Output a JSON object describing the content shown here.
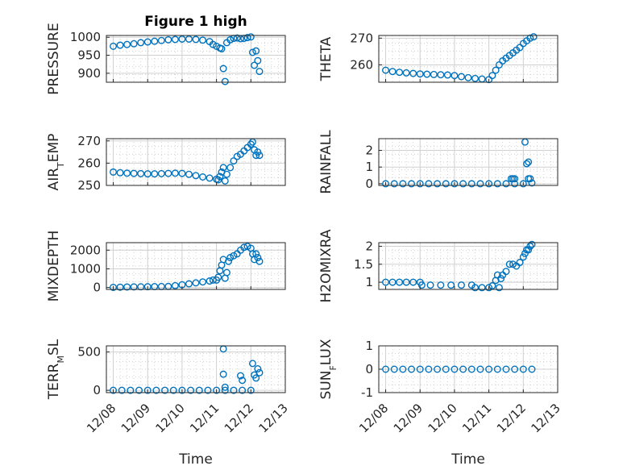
{
  "chart_data": [
    {
      "type": "scatter",
      "title": "Figure 1 high",
      "ylabel": "PRESSURE",
      "ylim": [
        875,
        1005
      ],
      "yticks": [
        {
          "v": 900,
          "t": "900"
        },
        {
          "v": 950,
          "t": "950"
        },
        {
          "v": 1000,
          "t": "1000"
        }
      ],
      "xlim": [
        -0.2,
        5
      ],
      "xticks": [
        {
          "v": 0,
          "t": "12/08"
        },
        {
          "v": 1,
          "t": "12/09"
        },
        {
          "v": 2,
          "t": "12/10"
        },
        {
          "v": 3,
          "t": "12/11"
        },
        {
          "v": 4,
          "t": "12/12"
        },
        {
          "v": 5,
          "t": "12/13"
        }
      ],
      "show_xticklabels": false,
      "xlabel": "",
      "points": [
        [
          0,
          975
        ],
        [
          0.2,
          978
        ],
        [
          0.4,
          980
        ],
        [
          0.6,
          982
        ],
        [
          0.8,
          985
        ],
        [
          1,
          987
        ],
        [
          1.2,
          989
        ],
        [
          1.4,
          991
        ],
        [
          1.6,
          993
        ],
        [
          1.8,
          994
        ],
        [
          2,
          995
        ],
        [
          2.2,
          995
        ],
        [
          2.4,
          994
        ],
        [
          2.6,
          992
        ],
        [
          2.8,
          988
        ],
        [
          2.9,
          980
        ],
        [
          3,
          975
        ],
        [
          3.1,
          970
        ],
        [
          3.15,
          968
        ],
        [
          3.2,
          913
        ],
        [
          3.25,
          877
        ],
        [
          3.3,
          985
        ],
        [
          3.4,
          993
        ],
        [
          3.5,
          997
        ],
        [
          3.6,
          998
        ],
        [
          3.7,
          996
        ],
        [
          3.8,
          997
        ],
        [
          3.9,
          999
        ],
        [
          4,
          1001
        ],
        [
          4.05,
          958
        ],
        [
          4.1,
          922
        ],
        [
          4.15,
          962
        ],
        [
          4.2,
          935
        ],
        [
          4.25,
          905
        ]
      ]
    },
    {
      "type": "scatter",
      "title": "",
      "ylabel": "THETA",
      "ylim": [
        253.5,
        271
      ],
      "yticks": [
        {
          "v": 260,
          "t": "260"
        },
        {
          "v": 270,
          "t": "270"
        }
      ],
      "xlim": [
        -0.2,
        5
      ],
      "xticks": [
        {
          "v": 0,
          "t": "12/08"
        },
        {
          "v": 1,
          "t": "12/09"
        },
        {
          "v": 2,
          "t": "12/10"
        },
        {
          "v": 3,
          "t": "12/11"
        },
        {
          "v": 4,
          "t": "12/12"
        },
        {
          "v": 5,
          "t": "12/13"
        }
      ],
      "show_xticklabels": false,
      "xlabel": "",
      "points": [
        [
          0,
          258
        ],
        [
          0.2,
          257.5
        ],
        [
          0.4,
          257.2
        ],
        [
          0.6,
          257
        ],
        [
          0.8,
          256.8
        ],
        [
          1,
          256.6
        ],
        [
          1.2,
          256.5
        ],
        [
          1.4,
          256.4
        ],
        [
          1.6,
          256.3
        ],
        [
          1.8,
          256.2
        ],
        [
          2,
          256
        ],
        [
          2.2,
          255.6
        ],
        [
          2.4,
          255.2
        ],
        [
          2.6,
          254.9
        ],
        [
          2.8,
          254.7
        ],
        [
          3,
          254.5
        ],
        [
          3.1,
          256
        ],
        [
          3.2,
          258
        ],
        [
          3.3,
          260
        ],
        [
          3.4,
          261.5
        ],
        [
          3.5,
          262.5
        ],
        [
          3.6,
          263.5
        ],
        [
          3.7,
          264.5
        ],
        [
          3.8,
          265.5
        ],
        [
          3.9,
          266.5
        ],
        [
          4,
          268
        ],
        [
          4.1,
          269
        ],
        [
          4.2,
          270
        ],
        [
          4.3,
          270.5
        ]
      ]
    },
    {
      "type": "scatter",
      "title": "",
      "ylabel": "AIR_TEMP",
      "ylim": [
        250,
        271
      ],
      "yticks": [
        {
          "v": 250,
          "t": "250"
        },
        {
          "v": 260,
          "t": "260"
        },
        {
          "v": 270,
          "t": "270"
        }
      ],
      "xlim": [
        -0.2,
        5
      ],
      "xticks": [
        {
          "v": 0,
          "t": "12/08"
        },
        {
          "v": 1,
          "t": "12/09"
        },
        {
          "v": 2,
          "t": "12/10"
        },
        {
          "v": 3,
          "t": "12/11"
        },
        {
          "v": 4,
          "t": "12/12"
        },
        {
          "v": 5,
          "t": "12/13"
        }
      ],
      "show_xticklabels": false,
      "xlabel": "",
      "points": [
        [
          0,
          256
        ],
        [
          0.2,
          255.7
        ],
        [
          0.4,
          255.5
        ],
        [
          0.6,
          255.4
        ],
        [
          0.8,
          255.3
        ],
        [
          1,
          255.2
        ],
        [
          1.2,
          255.2
        ],
        [
          1.4,
          255.3
        ],
        [
          1.6,
          255.4
        ],
        [
          1.8,
          255.5
        ],
        [
          2,
          255.4
        ],
        [
          2.2,
          255
        ],
        [
          2.4,
          254.4
        ],
        [
          2.6,
          253.8
        ],
        [
          2.8,
          253.3
        ],
        [
          3,
          252.8
        ],
        [
          3.05,
          252.5
        ],
        [
          3.1,
          254
        ],
        [
          3.15,
          256
        ],
        [
          3.2,
          258
        ],
        [
          3.25,
          252
        ],
        [
          3.3,
          255
        ],
        [
          3.4,
          258
        ],
        [
          3.5,
          261
        ],
        [
          3.6,
          263
        ],
        [
          3.7,
          264
        ],
        [
          3.8,
          265.5
        ],
        [
          3.9,
          267
        ],
        [
          4,
          268.5
        ],
        [
          4.05,
          269.5
        ],
        [
          4.1,
          266
        ],
        [
          4.15,
          263.5
        ],
        [
          4.2,
          265
        ],
        [
          4.25,
          263.5
        ]
      ]
    },
    {
      "type": "scatter",
      "title": "",
      "ylabel": "RAINFALL",
      "ylim": [
        -0.1,
        2.7
      ],
      "yticks": [
        {
          "v": 0,
          "t": "0"
        },
        {
          "v": 1,
          "t": "1"
        },
        {
          "v": 2,
          "t": "2"
        }
      ],
      "xlim": [
        -0.2,
        5
      ],
      "xticks": [
        {
          "v": 0,
          "t": "12/08"
        },
        {
          "v": 1,
          "t": "12/09"
        },
        {
          "v": 2,
          "t": "12/10"
        },
        {
          "v": 3,
          "t": "12/11"
        },
        {
          "v": 4,
          "t": "12/12"
        },
        {
          "v": 5,
          "t": "12/13"
        }
      ],
      "show_xticklabels": false,
      "xlabel": "",
      "points": [
        [
          0,
          0
        ],
        [
          0.25,
          0
        ],
        [
          0.5,
          0
        ],
        [
          0.75,
          0
        ],
        [
          1,
          0
        ],
        [
          1.25,
          0
        ],
        [
          1.5,
          0
        ],
        [
          1.75,
          0
        ],
        [
          2,
          0
        ],
        [
          2.25,
          0
        ],
        [
          2.5,
          0
        ],
        [
          2.75,
          0
        ],
        [
          3,
          0
        ],
        [
          3.25,
          0
        ],
        [
          3.5,
          0
        ],
        [
          3.75,
          0
        ],
        [
          4,
          0
        ],
        [
          3.65,
          0.3
        ],
        [
          3.7,
          0.3
        ],
        [
          3.75,
          0.3
        ],
        [
          4.05,
          2.5
        ],
        [
          4.1,
          1.2
        ],
        [
          4.15,
          1.3
        ],
        [
          4.15,
          0.3
        ],
        [
          4.2,
          0.3
        ],
        [
          4.25,
          0.05
        ]
      ]
    },
    {
      "type": "scatter",
      "title": "",
      "ylabel": "MIXDEPTH",
      "ylim": [
        -100,
        2400
      ],
      "yticks": [
        {
          "v": 0,
          "t": "0"
        },
        {
          "v": 1000,
          "t": "1000"
        },
        {
          "v": 2000,
          "t": "2000"
        }
      ],
      "xlim": [
        -0.2,
        5
      ],
      "xticks": [
        {
          "v": 0,
          "t": "12/08"
        },
        {
          "v": 1,
          "t": "12/09"
        },
        {
          "v": 2,
          "t": "12/10"
        },
        {
          "v": 3,
          "t": "12/11"
        },
        {
          "v": 4,
          "t": "12/12"
        },
        {
          "v": 5,
          "t": "12/13"
        }
      ],
      "show_xticklabels": false,
      "xlabel": "",
      "points": [
        [
          0,
          10
        ],
        [
          0.2,
          20
        ],
        [
          0.4,
          30
        ],
        [
          0.6,
          35
        ],
        [
          0.8,
          40
        ],
        [
          1,
          45
        ],
        [
          1.2,
          50
        ],
        [
          1.4,
          55
        ],
        [
          1.6,
          60
        ],
        [
          1.8,
          100
        ],
        [
          2,
          150
        ],
        [
          2.2,
          200
        ],
        [
          2.4,
          250
        ],
        [
          2.6,
          300
        ],
        [
          2.8,
          350
        ],
        [
          2.9,
          400
        ],
        [
          3,
          400
        ],
        [
          3.05,
          550
        ],
        [
          3.1,
          900
        ],
        [
          3.15,
          1200
        ],
        [
          3.2,
          1500
        ],
        [
          3.25,
          500
        ],
        [
          3.3,
          800
        ],
        [
          3.35,
          1400
        ],
        [
          3.4,
          1600
        ],
        [
          3.5,
          1700
        ],
        [
          3.6,
          1800
        ],
        [
          3.7,
          2000
        ],
        [
          3.8,
          2150
        ],
        [
          3.9,
          2200
        ],
        [
          4,
          2100
        ],
        [
          4.05,
          1800
        ],
        [
          4.1,
          1500
        ],
        [
          4.15,
          1800
        ],
        [
          4.2,
          1600
        ],
        [
          4.25,
          1400
        ]
      ]
    },
    {
      "type": "scatter",
      "title": "",
      "ylabel": "H2OMIXRA",
      "ylim": [
        0.8,
        2.1
      ],
      "yticks": [
        {
          "v": 1,
          "t": "1"
        },
        {
          "v": 1.5,
          "t": "1.5"
        },
        {
          "v": 2,
          "t": "2"
        }
      ],
      "xlim": [
        -0.2,
        5
      ],
      "xticks": [
        {
          "v": 0,
          "t": "12/08"
        },
        {
          "v": 1,
          "t": "12/09"
        },
        {
          "v": 2,
          "t": "12/10"
        },
        {
          "v": 3,
          "t": "12/11"
        },
        {
          "v": 4,
          "t": "12/12"
        },
        {
          "v": 5,
          "t": "12/13"
        }
      ],
      "show_xticklabels": false,
      "xlabel": "",
      "points": [
        [
          0,
          1
        ],
        [
          0.2,
          1
        ],
        [
          0.4,
          1
        ],
        [
          0.6,
          1
        ],
        [
          0.8,
          1
        ],
        [
          1,
          1
        ],
        [
          1.05,
          0.92
        ],
        [
          1.3,
          0.92
        ],
        [
          1.6,
          0.92
        ],
        [
          1.9,
          0.92
        ],
        [
          2.2,
          0.92
        ],
        [
          2.5,
          0.92
        ],
        [
          2.6,
          0.85
        ],
        [
          2.8,
          0.85
        ],
        [
          3,
          0.85
        ],
        [
          3.1,
          0.9
        ],
        [
          3.2,
          1.05
        ],
        [
          3.25,
          1.2
        ],
        [
          3.3,
          0.85
        ],
        [
          3.35,
          1.1
        ],
        [
          3.4,
          1.2
        ],
        [
          3.5,
          1.3
        ],
        [
          3.6,
          1.5
        ],
        [
          3.7,
          1.5
        ],
        [
          3.8,
          1.45
        ],
        [
          3.9,
          1.55
        ],
        [
          4,
          1.7
        ],
        [
          4.05,
          1.8
        ],
        [
          4.1,
          1.9
        ],
        [
          4.15,
          1.9
        ],
        [
          4.2,
          2
        ],
        [
          4.25,
          2.05
        ]
      ]
    },
    {
      "type": "scatter",
      "title": "",
      "ylabel": "TERR_MSL",
      "ylim": [
        -30,
        580
      ],
      "yticks": [
        {
          "v": 0,
          "t": "0"
        },
        {
          "v": 500,
          "t": "500"
        }
      ],
      "xlim": [
        -0.2,
        5
      ],
      "xticks": [
        {
          "v": 0,
          "t": "12/08"
        },
        {
          "v": 1,
          "t": "12/09"
        },
        {
          "v": 2,
          "t": "12/10"
        },
        {
          "v": 3,
          "t": "12/11"
        },
        {
          "v": 4,
          "t": "12/12"
        },
        {
          "v": 5,
          "t": "12/13"
        }
      ],
      "show_xticklabels": true,
      "xlabel": "Time",
      "points": [
        [
          0,
          0
        ],
        [
          0.25,
          0
        ],
        [
          0.5,
          0
        ],
        [
          0.75,
          0
        ],
        [
          1,
          0
        ],
        [
          1.25,
          0
        ],
        [
          1.5,
          0
        ],
        [
          1.75,
          0
        ],
        [
          2,
          0
        ],
        [
          2.25,
          0
        ],
        [
          2.5,
          0
        ],
        [
          2.75,
          0
        ],
        [
          3,
          0
        ],
        [
          3.25,
          0
        ],
        [
          3.5,
          0
        ],
        [
          3.75,
          0
        ],
        [
          4,
          0
        ],
        [
          3.2,
          540
        ],
        [
          3.2,
          210
        ],
        [
          3.25,
          40
        ],
        [
          3.7,
          190
        ],
        [
          3.75,
          130
        ],
        [
          4.05,
          350
        ],
        [
          4.1,
          200
        ],
        [
          4.15,
          160
        ],
        [
          4.2,
          280
        ],
        [
          4.25,
          230
        ]
      ]
    },
    {
      "type": "scatter",
      "title": "",
      "ylabel": "SUN_FLUX",
      "ylim": [
        -1,
        1
      ],
      "yticks": [
        {
          "v": -1,
          "t": "-1"
        },
        {
          "v": 0,
          "t": "0"
        },
        {
          "v": 1,
          "t": "1"
        }
      ],
      "xlim": [
        -0.2,
        5
      ],
      "xticks": [
        {
          "v": 0,
          "t": "12/08"
        },
        {
          "v": 1,
          "t": "12/09"
        },
        {
          "v": 2,
          "t": "12/10"
        },
        {
          "v": 3,
          "t": "12/11"
        },
        {
          "v": 4,
          "t": "12/12"
        },
        {
          "v": 5,
          "t": "12/13"
        }
      ],
      "show_xticklabels": true,
      "xlabel": "Time",
      "points": [
        [
          0,
          0
        ],
        [
          0.25,
          0
        ],
        [
          0.5,
          0
        ],
        [
          0.75,
          0
        ],
        [
          1,
          0
        ],
        [
          1.25,
          0
        ],
        [
          1.5,
          0
        ],
        [
          1.75,
          0
        ],
        [
          2,
          0
        ],
        [
          2.25,
          0
        ],
        [
          2.5,
          0
        ],
        [
          2.75,
          0
        ],
        [
          3,
          0
        ],
        [
          3.25,
          0
        ],
        [
          3.5,
          0
        ],
        [
          3.75,
          0
        ],
        [
          4,
          0
        ],
        [
          4.25,
          0
        ]
      ]
    }
  ],
  "style": {
    "marker_color": "#0072bd",
    "grid_color": "#d0d0d0",
    "axis_color": "#262626"
  }
}
